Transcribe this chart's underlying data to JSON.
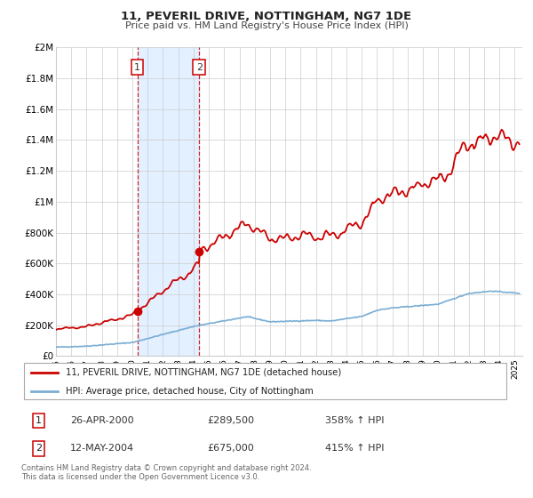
{
  "title": "11, PEVERIL DRIVE, NOTTINGHAM, NG7 1DE",
  "subtitle": "Price paid vs. HM Land Registry's House Price Index (HPI)",
  "legend_line1": "11, PEVERIL DRIVE, NOTTINGHAM, NG7 1DE (detached house)",
  "legend_line2": "HPI: Average price, detached house, City of Nottingham",
  "transaction1_date": "26-APR-2000",
  "transaction1_price": "£289,500",
  "transaction1_hpi": "358% ↑ HPI",
  "transaction2_date": "12-MAY-2004",
  "transaction2_price": "£675,000",
  "transaction2_hpi": "415% ↑ HPI",
  "footnote": "Contains HM Land Registry data © Crown copyright and database right 2024.\nThis data is licensed under the Open Government Licence v3.0.",
  "hpi_color": "#7aadd4",
  "price_color": "#cc0000",
  "shade_color": "#ddeeff",
  "grid_color": "#cccccc",
  "background_color": "#ffffff",
  "ylim": [
    0,
    2000000
  ],
  "yticks": [
    0,
    200000,
    400000,
    600000,
    800000,
    1000000,
    1200000,
    1400000,
    1600000,
    1800000,
    2000000
  ],
  "ylabel_map": {
    "0": "£0",
    "200000": "£200K",
    "400000": "£400K",
    "600000": "£600K",
    "800000": "£800K",
    "1000000": "£1M",
    "1200000": "£1.2M",
    "1400000": "£1.4M",
    "1600000": "£1.6M",
    "1800000": "£1.8M",
    "2000000": "£2M"
  },
  "xmin": 1995.0,
  "xmax": 2025.5,
  "transaction1_x": 2000.32,
  "transaction1_y": 289500,
  "transaction2_x": 2004.37,
  "transaction2_y": 675000
}
